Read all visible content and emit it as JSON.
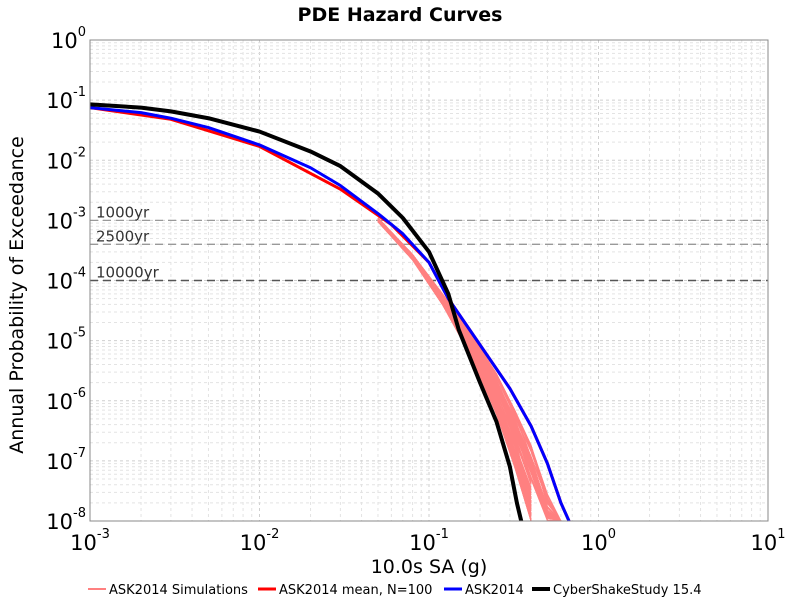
{
  "chart_data": {
    "type": "line",
    "title": "PDE Hazard Curves",
    "xlabel": "10.0s SA (g)",
    "ylabel": "Annual Probability of Exceedance",
    "x_scale": "log",
    "y_scale": "log",
    "xlim": [
      0.001,
      10
    ],
    "ylim": [
      1e-08,
      1
    ],
    "x_ticks": [
      {
        "base": "10",
        "exp": "-3",
        "value": 0.001
      },
      {
        "base": "10",
        "exp": "-2",
        "value": 0.01
      },
      {
        "base": "10",
        "exp": "-1",
        "value": 0.1
      },
      {
        "base": "10",
        "exp": "0",
        "value": 1
      },
      {
        "base": "10",
        "exp": "1",
        "value": 10
      }
    ],
    "y_ticks": [
      {
        "base": "10",
        "exp": "0",
        "value": 1
      },
      {
        "base": "10",
        "exp": "-1",
        "value": 0.1
      },
      {
        "base": "10",
        "exp": "-2",
        "value": 0.01
      },
      {
        "base": "10",
        "exp": "-3",
        "value": 0.001
      },
      {
        "base": "10",
        "exp": "-4",
        "value": 0.0001
      },
      {
        "base": "10",
        "exp": "-5",
        "value": 1e-05
      },
      {
        "base": "10",
        "exp": "-6",
        "value": 1e-06
      },
      {
        "base": "10",
        "exp": "-7",
        "value": 1e-07
      },
      {
        "base": "10",
        "exp": "-8",
        "value": 1e-08
      }
    ],
    "grid": true,
    "legend_position": "bottom",
    "reference_lines": [
      {
        "label": "1000yr",
        "y": 0.001
      },
      {
        "label": "2500yr",
        "y": 0.0004
      },
      {
        "label": "10000yr",
        "y": 0.0001
      }
    ],
    "series": [
      {
        "name": "ASK2014 Simulations",
        "color": "#ff8080",
        "count": 100,
        "envelope": {
          "x": [
            0.05,
            0.08,
            0.12,
            0.18,
            0.25,
            0.32,
            0.4,
            0.5,
            0.6
          ],
          "y_low": [
            0.00095,
            0.00022,
            4e-05,
            5e-06,
            6e-07,
            8e-08,
            1e-08,
            null,
            null
          ],
          "y_high": [
            0.0011,
            0.00027,
            6e-05,
            1.2e-05,
            2.8e-06,
            7e-07,
            1.8e-07,
            3e-08,
            1e-08
          ]
        }
      },
      {
        "name": "ASK2014 mean, N=100",
        "color": "#ff0000",
        "x": [
          0.001,
          0.003,
          0.01,
          0.03,
          0.06,
          0.1,
          0.13,
          0.2,
          0.3,
          0.4,
          0.5,
          0.6,
          0.67
        ],
        "y": [
          0.075,
          0.048,
          0.017,
          0.0033,
          0.00085,
          0.0002,
          5e-05,
          8.5e-06,
          1.6e-06,
          3.8e-07,
          9e-08,
          2e-08,
          1e-08
        ]
      },
      {
        "name": "ASK2014",
        "color": "#0000ff",
        "x": [
          0.001,
          0.002,
          0.003,
          0.005,
          0.01,
          0.02,
          0.03,
          0.05,
          0.07,
          0.1,
          0.13,
          0.2,
          0.3,
          0.4,
          0.5,
          0.6,
          0.67
        ],
        "y": [
          0.075,
          0.062,
          0.05,
          0.035,
          0.018,
          0.0075,
          0.0038,
          0.0013,
          0.0006,
          0.0002,
          5e-05,
          8.5e-06,
          1.6e-06,
          3.8e-07,
          9e-08,
          2e-08,
          1e-08
        ]
      },
      {
        "name": "CyberShakeStudy 15.4",
        "color": "#000000",
        "x": [
          0.001,
          0.002,
          0.003,
          0.005,
          0.01,
          0.02,
          0.03,
          0.05,
          0.07,
          0.1,
          0.13,
          0.15,
          0.2,
          0.25,
          0.3,
          0.33,
          0.35
        ],
        "y": [
          0.085,
          0.075,
          0.065,
          0.05,
          0.03,
          0.014,
          0.008,
          0.0028,
          0.0011,
          0.0003,
          6e-05,
          1.5e-05,
          2e-06,
          4.5e-07,
          8e-08,
          2e-08,
          1e-08
        ]
      }
    ]
  }
}
